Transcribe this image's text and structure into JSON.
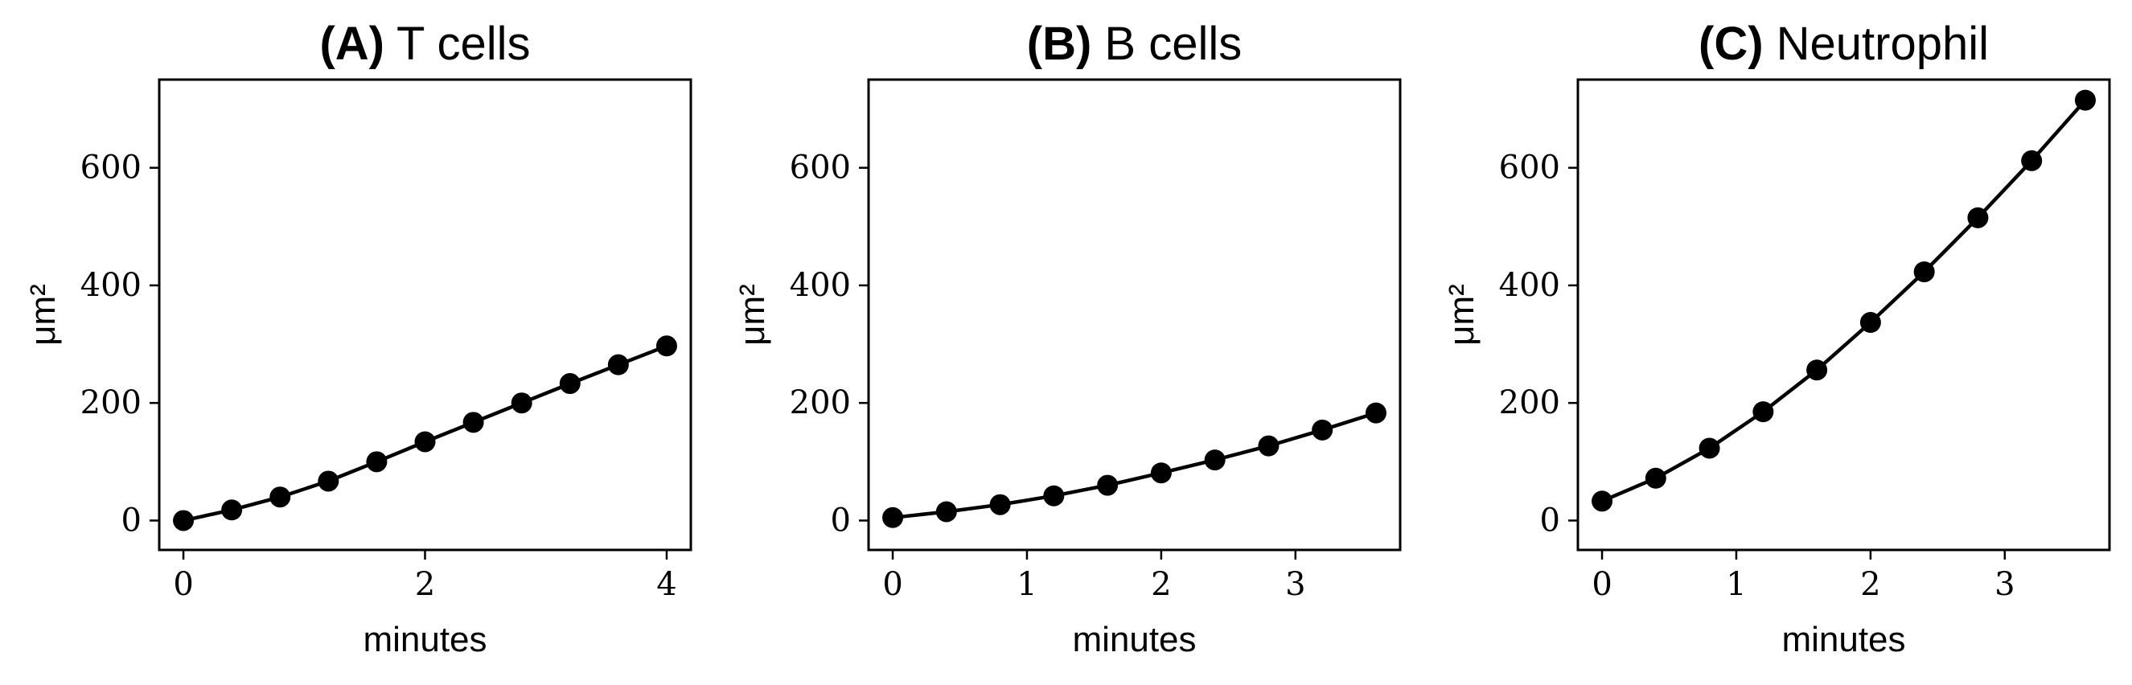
{
  "chart_data": [
    {
      "type": "line",
      "title_prefix": "(A)",
      "title": "T cells",
      "xlabel": "minutes",
      "ylabel": "μm²",
      "xlim": [
        -0.2,
        4.2
      ],
      "ylim": [
        -50,
        750
      ],
      "xticks": [
        0,
        2,
        4
      ],
      "yticks": [
        0,
        200,
        400,
        600
      ],
      "grid": false,
      "series": [
        {
          "x": [
            0,
            0.4,
            0.8,
            1.2,
            1.6,
            2.0,
            2.4,
            2.8,
            3.2,
            3.6,
            4.0
          ],
          "y": [
            0,
            18,
            40,
            67,
            100,
            134,
            167,
            200,
            233,
            265,
            297
          ],
          "color": "#000000",
          "marker": "circle"
        }
      ]
    },
    {
      "type": "line",
      "title_prefix": "(B)",
      "title": "B cells",
      "xlabel": "minutes",
      "ylabel": "μm²",
      "xlim": [
        -0.18,
        3.78
      ],
      "ylim": [
        -50,
        750
      ],
      "xticks": [
        0,
        1,
        2,
        3
      ],
      "yticks": [
        0,
        200,
        400,
        600
      ],
      "grid": false,
      "series": [
        {
          "x": [
            0,
            0.4,
            0.8,
            1.2,
            1.6,
            2.0,
            2.4,
            2.8,
            3.2,
            3.6
          ],
          "y": [
            5,
            15,
            27,
            42,
            60,
            81,
            103,
            127,
            154,
            183
          ],
          "color": "#000000",
          "marker": "circle"
        }
      ]
    },
    {
      "type": "line",
      "title_prefix": "(C)",
      "title": "Neutrophil",
      "xlabel": "minutes",
      "ylabel": "μm²",
      "xlim": [
        -0.18,
        3.78
      ],
      "ylim": [
        -50,
        750
      ],
      "xticks": [
        0,
        1,
        2,
        3
      ],
      "yticks": [
        0,
        200,
        400,
        600
      ],
      "grid": false,
      "series": [
        {
          "x": [
            0,
            0.4,
            0.8,
            1.2,
            1.6,
            2.0,
            2.4,
            2.8,
            3.2,
            3.6
          ],
          "y": [
            33,
            72,
            123,
            185,
            256,
            337,
            423,
            515,
            612,
            715
          ],
          "color": "#000000",
          "marker": "circle"
        }
      ]
    }
  ]
}
